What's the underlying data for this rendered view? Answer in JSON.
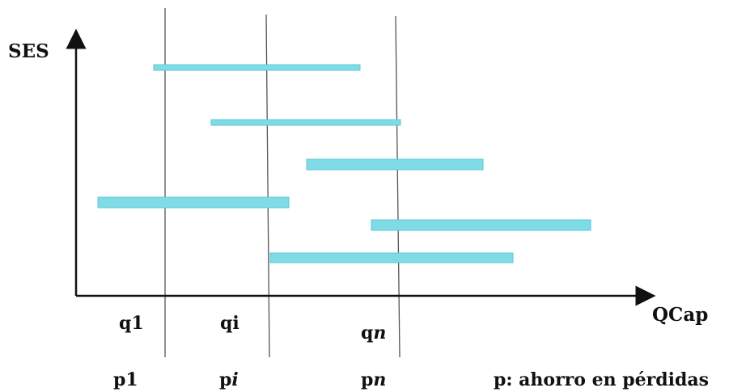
{
  "axes": {
    "y_label": "SES",
    "x_label": "QCap"
  },
  "q_labels": [
    {
      "main": "q1",
      "italic": ""
    },
    {
      "main": "qi",
      "italic": ""
    },
    {
      "main": "q",
      "italic": "n"
    }
  ],
  "p_labels": [
    {
      "main": "p1",
      "italic": ""
    },
    {
      "main": "p",
      "italic": "i"
    },
    {
      "main": "p",
      "italic": "n"
    }
  ],
  "legend_note": "p: ahorro en pérdidas",
  "colors": {
    "bar": "#7fdbe6",
    "bar_edge": "#5bc9d6",
    "axis": "#111111",
    "guide": "#555555"
  }
}
